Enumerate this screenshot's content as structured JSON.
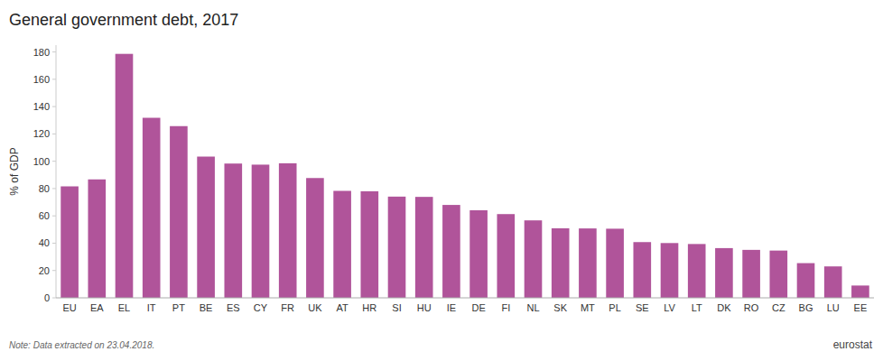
{
  "chart_data": {
    "type": "bar",
    "title": "General government debt, 2017",
    "ylabel": "% of GDP",
    "annotations": [
      "Note: Data extracted on 23.04.2018.",
      "eurostat"
    ],
    "categories": [
      "EU",
      "EA",
      "EL",
      "IT",
      "PT",
      "BE",
      "ES",
      "CY",
      "FR",
      "UK",
      "AT",
      "HR",
      "SI",
      "HU",
      "IE",
      "DE",
      "FI",
      "NL",
      "SK",
      "MT",
      "PL",
      "SE",
      "LV",
      "LT",
      "DK",
      "RO",
      "CZ",
      "BG",
      "LU",
      "EE"
    ],
    "values": [
      81.6,
      86.7,
      178.6,
      131.8,
      125.7,
      103.4,
      98.3,
      97.5,
      98.5,
      87.7,
      78.3,
      78.0,
      74.1,
      73.9,
      68.0,
      64.1,
      61.3,
      56.7,
      50.9,
      50.8,
      50.6,
      40.8,
      40.1,
      39.4,
      36.4,
      35.1,
      34.6,
      25.4,
      23.0,
      9.0
    ],
    "color": "#b0549a",
    "ylim": [
      0,
      185
    ],
    "yticks": [
      0,
      20,
      40,
      60,
      80,
      100,
      120,
      140,
      160,
      180
    ],
    "grid": false
  }
}
